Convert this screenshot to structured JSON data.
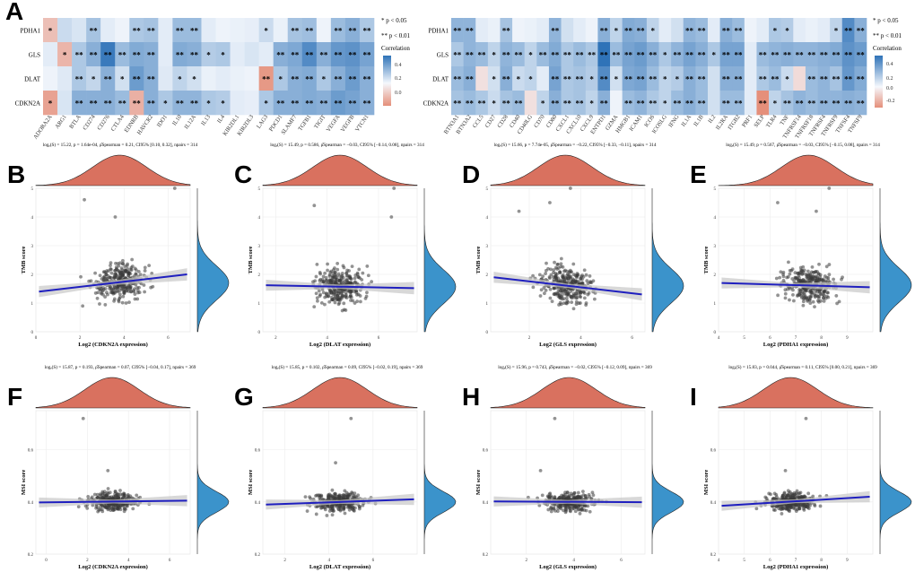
{
  "chart_data": [
    {
      "type": "heatmap",
      "panel": "A",
      "rows": [
        "PDHA1",
        "GLS",
        "DLAT",
        "CDKN2A"
      ],
      "columns": [
        "ADORA2A",
        "ARG1",
        "BTLA",
        "CD274",
        "CD276",
        "CTLA4",
        "EDNRB",
        "HAVCR2",
        "IDO1",
        "IL10",
        "IL12A",
        "IL13",
        "IL4",
        "KIR2DL1",
        "KIR2DL3",
        "LAG3",
        "PDCD1",
        "SLAMF7",
        "TGFB1",
        "TIGIT",
        "VEGFA",
        "VEGFB",
        "VTCN1"
      ],
      "values": [
        [
          -0.12,
          0.12,
          0.08,
          0.22,
          0.05,
          0.02,
          0.2,
          0.22,
          0.05,
          0.25,
          0.25,
          0.05,
          0.02,
          0.03,
          0.04,
          0.12,
          0.03,
          0.22,
          0.24,
          0.02,
          0.25,
          0.3,
          0.2
        ],
        [
          0.05,
          -0.14,
          0.2,
          0.3,
          0.52,
          0.25,
          0.32,
          0.3,
          0.05,
          0.32,
          0.3,
          0.18,
          0.2,
          0.05,
          0.08,
          0.05,
          0.3,
          0.33,
          0.45,
          0.3,
          0.4,
          0.42,
          0.35
        ],
        [
          0.02,
          0.06,
          0.2,
          0.14,
          0.3,
          0.1,
          0.38,
          0.3,
          0.06,
          0.15,
          0.1,
          0.03,
          0.05,
          0.03,
          0.02,
          -0.2,
          0.2,
          0.3,
          0.32,
          0.2,
          0.3,
          0.38,
          0.3
        ],
        [
          -0.18,
          0.08,
          0.3,
          0.3,
          0.3,
          0.25,
          -0.15,
          0.3,
          0.2,
          0.28,
          0.28,
          0.2,
          0.18,
          0.05,
          0.04,
          0.2,
          0.3,
          0.3,
          0.32,
          0.3,
          0.38,
          0.35,
          0.3
        ]
      ],
      "significance": [
        [
          "*",
          "",
          "",
          "**",
          "",
          "",
          "**",
          "**",
          "",
          "**",
          "**",
          "",
          "",
          "",
          "",
          "*",
          "",
          "**",
          "**",
          "",
          "**",
          "**",
          "**"
        ],
        [
          "",
          "*",
          "**",
          "**",
          "**",
          "**",
          "**",
          "**",
          "",
          "**",
          "**",
          "*",
          "*",
          "",
          "",
          "",
          "**",
          "**",
          "**",
          "**",
          "**",
          "**",
          "**"
        ],
        [
          "",
          "",
          "**",
          "*",
          "**",
          "*",
          "**",
          "**",
          "",
          "*",
          "*",
          "",
          "",
          "",
          "",
          "**",
          "*",
          "**",
          "**",
          "*",
          "**",
          "**",
          "**"
        ],
        [
          "*",
          "",
          "**",
          "**",
          "**",
          "**",
          "**",
          "**",
          "*",
          "**",
          "**",
          "*",
          "*",
          "",
          "",
          "*",
          "**",
          "**",
          "**",
          "**",
          "**",
          "**",
          "**"
        ]
      ],
      "legend_title": "Correlation",
      "legend_ticks": [
        "0.4",
        "0.2",
        "0.0"
      ],
      "sig_notes": [
        "* p < 0.05",
        "** p < 0.01"
      ]
    },
    {
      "type": "heatmap",
      "panel": "A2",
      "rows": [
        "PDHA1",
        "GLS",
        "DLAT",
        "CDKN2A"
      ],
      "columns": [
        "BTN3A1",
        "BTN3A2",
        "CCL5",
        "CD27",
        "CD28",
        "CD40",
        "CD40LG",
        "CD70",
        "CD80",
        "CXCL1",
        "CXCL10",
        "CXCL9",
        "ENTPD1",
        "GZMA",
        "HMGB1",
        "ICAM1",
        "ICOS",
        "ICOSLG",
        "IFNG",
        "IL1A",
        "IL1B",
        "IL2",
        "IL2RA",
        "ITGB2",
        "PRF1",
        "SELP",
        "TLR4",
        "TNF",
        "TNFRSF14",
        "TNFRSF18",
        "TNFRSF4",
        "TNFRSF9",
        "TNFSF4",
        "TNFSF9"
      ],
      "values": [
        [
          0.28,
          0.28,
          0.05,
          0.03,
          0.22,
          0.02,
          0.03,
          0.05,
          0.28,
          0.1,
          0.05,
          0.02,
          0.3,
          0.15,
          0.32,
          0.3,
          0.15,
          0.05,
          0.1,
          0.28,
          0.25,
          0.05,
          0.3,
          0.25,
          0.02,
          0.05,
          0.2,
          0.18,
          0.05,
          0.03,
          0.05,
          0.15,
          0.45,
          0.3
        ],
        [
          0.2,
          0.28,
          0.25,
          0.15,
          0.28,
          0.25,
          0.15,
          0.25,
          0.32,
          0.2,
          0.25,
          0.2,
          0.55,
          0.25,
          0.35,
          0.38,
          0.3,
          0.2,
          0.28,
          0.35,
          0.3,
          0.2,
          0.35,
          0.35,
          0.05,
          0.25,
          0.28,
          0.3,
          0.28,
          0.28,
          0.3,
          0.32,
          0.42,
          0.38
        ],
        [
          0.25,
          0.3,
          -0.05,
          0.1,
          0.3,
          0.12,
          0.15,
          0.05,
          0.35,
          0.2,
          0.22,
          0.18,
          0.45,
          0.1,
          0.33,
          0.35,
          0.25,
          0.15,
          0.18,
          0.3,
          0.25,
          0.1,
          0.3,
          0.3,
          0.05,
          0.2,
          0.25,
          0.12,
          -0.06,
          0.25,
          0.28,
          0.22,
          0.4,
          0.32
        ],
        [
          0.22,
          0.25,
          0.2,
          0.12,
          0.22,
          0.25,
          -0.05,
          0.15,
          0.3,
          0.2,
          0.22,
          0.15,
          0.3,
          0.02,
          0.25,
          0.28,
          0.2,
          0.15,
          0.25,
          0.3,
          0.25,
          0.1,
          0.25,
          0.25,
          0.05,
          -0.22,
          0.15,
          0.22,
          0.28,
          0.25,
          0.28,
          0.28,
          0.3,
          0.28
        ]
      ],
      "significance": [
        [
          "**",
          "**",
          "",
          "",
          "**",
          "",
          "",
          "",
          "**",
          "",
          "",
          "",
          "**",
          "*",
          "**",
          "**",
          "*",
          "",
          "",
          "**",
          "**",
          "",
          "**",
          "**",
          "",
          "",
          "*",
          "*",
          "",
          "",
          "",
          "*",
          "**",
          "**"
        ],
        [
          "**",
          "**",
          "**",
          "*",
          "**",
          "**",
          "*",
          "**",
          "**",
          "**",
          "**",
          "**",
          "**",
          "**",
          "**",
          "**",
          "**",
          "*",
          "**",
          "**",
          "**",
          "*",
          "**",
          "**",
          "",
          "**",
          "**",
          "**",
          "**",
          "**",
          "**",
          "**",
          "**",
          "**"
        ],
        [
          "**",
          "**",
          "",
          "*",
          "**",
          "*",
          "*",
          "",
          "**",
          "**",
          "**",
          "*",
          "**",
          "*",
          "**",
          "**",
          "**",
          "*",
          "*",
          "**",
          "**",
          "",
          "**",
          "**",
          "",
          "**",
          "**",
          "*",
          "",
          "**",
          "**",
          "**",
          "**",
          "**"
        ],
        [
          "**",
          "**",
          "**",
          "*",
          "**",
          "**",
          "",
          "*",
          "**",
          "**",
          "**",
          "*",
          "**",
          "",
          "**",
          "**",
          "**",
          "*",
          "**",
          "**",
          "**",
          "",
          "**",
          "**",
          "",
          "**",
          "*",
          "**",
          "**",
          "**",
          "**",
          "**",
          "**",
          "**"
        ]
      ],
      "legend_title": "Correlation",
      "legend_ticks": [
        "0.4",
        "0.2",
        "0.0",
        "-0.2"
      ],
      "sig_notes": [
        "* p < 0.05",
        "** p < 0.01"
      ]
    },
    {
      "type": "scatter",
      "panel": "B",
      "xlabel": "Log2 (CDKN2A expression)",
      "ylabel": "TMB score",
      "xlim": [
        0,
        7
      ],
      "ylim": [
        0,
        5
      ],
      "xticks": [
        0,
        2,
        4,
        6
      ],
      "yticks": [
        0,
        1,
        2,
        3,
        4,
        5
      ],
      "fit": [
        1.4,
        2.0
      ],
      "density_peak_x": 3.8,
      "seed": 11,
      "outliers": [
        [
          6.3,
          5.0
        ],
        [
          2.2,
          4.6
        ],
        [
          3.6,
          4.0
        ]
      ],
      "stats": "logₑ(S) = 15.22, p = 1.64e-04, ρ̂Spearman = 0.21, CI95% [0.10, 0.32], npairs = 314"
    },
    {
      "type": "scatter",
      "panel": "C",
      "xlabel": "Log2 (DLAT expression)",
      "ylabel": "TMB score",
      "xlim": [
        1.5,
        7.5
      ],
      "ylim": [
        0,
        5
      ],
      "xticks": [
        2,
        4,
        6
      ],
      "yticks": [
        0,
        1,
        2,
        3,
        4,
        5
      ],
      "fit": [
        1.62,
        1.52
      ],
      "density_peak_x": 4.5,
      "seed": 23,
      "outliers": [
        [
          6.6,
          5.0
        ],
        [
          6.5,
          4.0
        ],
        [
          3.5,
          4.4
        ]
      ],
      "stats": "logₑ(S) = 15.49, p = 0.586, ρ̂Spearman = −0.03, CI95% [−0.14, 0.08], npairs = 314"
    },
    {
      "type": "scatter",
      "panel": "D",
      "xlabel": "Log2 (GLS expression)",
      "ylabel": "TMB score",
      "xlim": [
        0.5,
        6.5
      ],
      "ylim": [
        0,
        5
      ],
      "xticks": [
        2,
        4,
        6
      ],
      "yticks": [
        0,
        1,
        2,
        3,
        4,
        5
      ],
      "fit": [
        1.9,
        1.3
      ],
      "density_peak_x": 3.4,
      "seed": 37,
      "outliers": [
        [
          3.6,
          5.0
        ],
        [
          1.6,
          4.2
        ],
        [
          2.8,
          4.5
        ]
      ],
      "stats": "logₑ(S) = 15.66, p = 7.74e-05, ρ̂Spearman = −0.22, CI95% [−0.33, −0.11], npairs = 314"
    },
    {
      "type": "scatter",
      "panel": "E",
      "xlabel": "Log2 (PDHA1 expression)",
      "ylabel": "TMB score",
      "xlim": [
        4,
        10
      ],
      "ylim": [
        0,
        5
      ],
      "xticks": [
        4,
        5,
        6,
        7,
        8,
        9
      ],
      "yticks": [
        0,
        1,
        2,
        3,
        4,
        5
      ],
      "fit": [
        1.7,
        1.55
      ],
      "density_peak_x": 7.5,
      "seed": 41,
      "outliers": [
        [
          8.3,
          5.0
        ],
        [
          6.3,
          4.5
        ],
        [
          7.8,
          4.2
        ]
      ],
      "stats": "logₑ(S) = 15.49, p = 0.567, ρ̂Spearman = −0.03, CI95% [−0.15, 0.08], npairs = 314"
    },
    {
      "type": "scatter",
      "panel": "F",
      "xlabel": "Log2 (CDKN2A expression)",
      "ylabel": "MSI score",
      "xlim": [
        -0.5,
        7
      ],
      "ylim": [
        0.2,
        0.75
      ],
      "xticks": [
        0,
        2,
        4,
        6
      ],
      "yticks": [
        0.2,
        0.4,
        0.6
      ],
      "points_y_center": 0.4,
      "fit": [
        0.398,
        0.405
      ],
      "density_peak_x": 3.2,
      "seed": 53,
      "outliers": [
        [
          1.8,
          0.72
        ],
        [
          3.0,
          0.52
        ]
      ],
      "stats": "logₑ(S) = 15.87, p = 0.193, ρ̂Spearman = 0.07, CI95% [−0.04, 0.17], npairs = 369"
    },
    {
      "type": "scatter",
      "panel": "G",
      "xlabel": "Log2 (DLAT expression)",
      "ylabel": "MSI score",
      "xlim": [
        1,
        8
      ],
      "ylim": [
        0.2,
        0.75
      ],
      "xticks": [
        2,
        4,
        6
      ],
      "yticks": [
        0.2,
        0.4,
        0.6
      ],
      "points_y_center": 0.4,
      "fit": [
        0.39,
        0.41
      ],
      "density_peak_x": 4.5,
      "seed": 67,
      "outliers": [
        [
          5.0,
          0.72
        ],
        [
          4.3,
          0.55
        ]
      ],
      "stats": "logₑ(S) = 15.85, p = 0.102, ρ̂Spearman = 0.09, CI95% [−0.02, 0.19], npairs = 369"
    },
    {
      "type": "scatter",
      "panel": "H",
      "xlabel": "Log2 (GLS expression)",
      "ylabel": "MSI score",
      "xlim": [
        0.5,
        7
      ],
      "ylim": [
        0.2,
        0.75
      ],
      "xticks": [
        2,
        4,
        6
      ],
      "yticks": [
        0.2,
        0.4,
        0.6
      ],
      "points_y_center": 0.4,
      "fit": [
        0.402,
        0.399
      ],
      "density_peak_x": 3.8,
      "seed": 71,
      "outliers": [
        [
          3.2,
          0.72
        ],
        [
          2.6,
          0.52
        ]
      ],
      "stats": "logₑ(S) = 15.96, p = 0.743, ρ̂Spearman = −0.02, CI95% [−0.12, 0.09], npairs = 369"
    },
    {
      "type": "scatter",
      "panel": "I",
      "xlabel": "Log2 (PDHA1 expression)",
      "ylabel": "MSI score",
      "xlim": [
        4,
        10
      ],
      "ylim": [
        0.2,
        0.75
      ],
      "xticks": [
        4,
        5,
        6,
        7,
        8,
        9
      ],
      "yticks": [
        0.2,
        0.4,
        0.6
      ],
      "points_y_center": 0.4,
      "fit": [
        0.385,
        0.42
      ],
      "density_peak_x": 6.8,
      "seed": 83,
      "outliers": [
        [
          7.4,
          0.72
        ],
        [
          6.6,
          0.52
        ]
      ],
      "stats": "logₑ(S) = 15.83, p = 0.044, ρ̂Spearman = 0.11, CI95% [0.00, 0.21], npairs = 369"
    }
  ],
  "colors": {
    "positive": "#2f73b8",
    "neutral": "#f5f8fd",
    "negative": "#e58f7a",
    "density_top": "#d9715f",
    "density_right": "#3b93cb",
    "fit_line": "#1f1fbf",
    "ci_band": "#c8c8c8",
    "points": "#3a3a3a"
  }
}
